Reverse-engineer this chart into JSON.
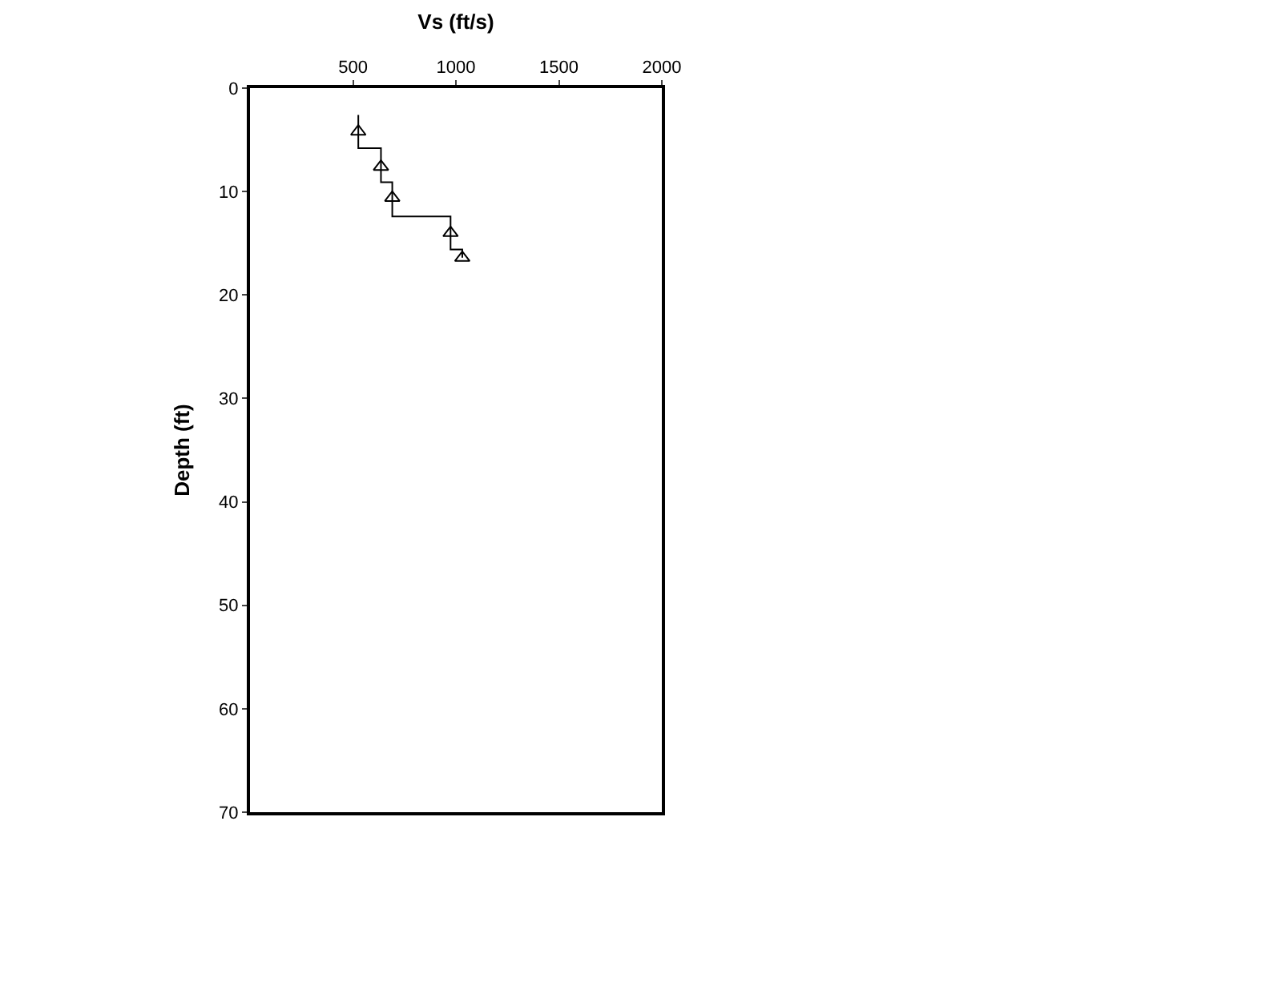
{
  "chart_data": {
    "type": "line",
    "xlabel": "Vs (ft/s)",
    "ylabel": "Depth (ft)",
    "xlim": [
      0,
      2000
    ],
    "xticks": [
      500,
      1000,
      1500,
      2000
    ],
    "ylim": [
      70,
      0
    ],
    "yticks": [
      0,
      10,
      20,
      30,
      40,
      50,
      60,
      70
    ],
    "series": [
      {
        "color": "#000000",
        "line_style": "solid",
        "x": [
          526,
          526,
          636,
          636,
          691,
          691,
          974,
          974,
          1031,
          1031
        ],
        "values": [
          2.6,
          5.8,
          5.8,
          9.1,
          9.1,
          12.4,
          12.4,
          15.6,
          15.6,
          16.4
        ]
      },
      {
        "type": "scatter",
        "color": "#000000",
        "marker": "triangle",
        "x": [
          526,
          636,
          691,
          974,
          1031
        ],
        "values": [
          4.2,
          7.6,
          10.6,
          14.0,
          16.4
        ]
      }
    ]
  }
}
